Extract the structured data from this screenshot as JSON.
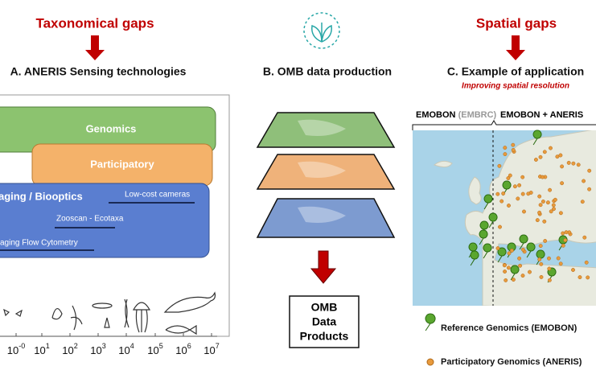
{
  "left": {
    "gap": "Taxonomical gaps",
    "heading": "A. ANERIS Sensing technologies",
    "boxes": [
      "Genomics",
      "Participatory",
      "aging / Biooptics"
    ],
    "tools": [
      "Low-cost cameras",
      "Zooscan - Ecotaxa",
      "aging Flow Cytometry"
    ],
    "axis": [
      {
        "base": "10",
        "exp": "-0"
      },
      {
        "base": "10",
        "exp": "1"
      },
      {
        "base": "10",
        "exp": "2"
      },
      {
        "base": "10",
        "exp": "3"
      },
      {
        "base": "10",
        "exp": "4"
      },
      {
        "base": "10",
        "exp": "5"
      },
      {
        "base": "10",
        "exp": "6"
      },
      {
        "base": "10",
        "exp": "7"
      }
    ]
  },
  "middle": {
    "heading": "B. OMB data production",
    "output": [
      "OMB",
      "Data",
      "Products"
    ]
  },
  "right": {
    "gap": "Spatial gaps",
    "heading": "C. Example of application",
    "subheading": "Improving spatial resolution",
    "left_label": "EMOBON",
    "left_label_note": "(EMBRC)",
    "right_label": "EMOBON + ANERIS",
    "legend": [
      "Reference Genomics (EMOBON)",
      "Participatory Genomics (ANERIS)"
    ]
  }
}
